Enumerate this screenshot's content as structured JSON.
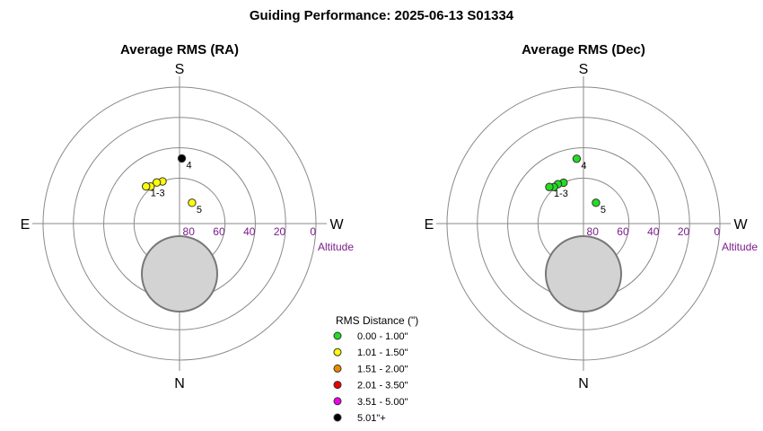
{
  "title": "Guiding Performance: 2025-06-13 S01334",
  "compass": {
    "top": "S",
    "bottom": "N",
    "left": "E",
    "right": "W"
  },
  "altitude_label": "Altitude",
  "altitude_ticks": [
    "80",
    "60",
    "40",
    "20",
    "0"
  ],
  "legend": {
    "title": "RMS Distance (\")",
    "items": [
      {
        "label": "0.00 - 1.00\"",
        "color": "#22dd22"
      },
      {
        "label": "1.01 - 1.50\"",
        "color": "#ffff00"
      },
      {
        "label": "1.51 - 2.00\"",
        "color": "#ee8800"
      },
      {
        "label": "2.01 - 3.50\"",
        "color": "#ee0000"
      },
      {
        "label": "3.51 - 5.00\"",
        "color": "#ee00ee"
      },
      {
        "label": "5.01\"+",
        "color": "#000000"
      }
    ]
  },
  "chart_data": [
    {
      "type": "scatter",
      "title": "Average RMS (RA)",
      "coordinate_system": "polar (azimuth, altitude)",
      "altitude_range": [
        0,
        90
      ],
      "points": [
        {
          "label": "4",
          "azimuth": 182,
          "altitude": 47,
          "color": "#000000"
        },
        {
          "label": "",
          "azimuth": 158,
          "altitude": 60,
          "color": "#ffff00"
        },
        {
          "label": "",
          "azimuth": 151,
          "altitude": 59,
          "color": "#ffff00"
        },
        {
          "label": "",
          "azimuth": 142,
          "altitude": 59,
          "color": "#ffff00"
        },
        {
          "label": "1-3",
          "azimuth": 138,
          "altitude": 57,
          "color": "#ffff00"
        },
        {
          "label": "5",
          "azimuth": 211,
          "altitude": 74,
          "color": "#ffff00"
        }
      ]
    },
    {
      "type": "scatter",
      "title": "Average RMS (Dec)",
      "coordinate_system": "polar (azimuth, altitude)",
      "altitude_range": [
        0,
        90
      ],
      "points": [
        {
          "label": "4",
          "azimuth": 174,
          "altitude": 47,
          "color": "#22dd22"
        },
        {
          "label": "",
          "azimuth": 154,
          "altitude": 60,
          "color": "#22dd22"
        },
        {
          "label": "",
          "azimuth": 147,
          "altitude": 59,
          "color": "#22dd22"
        },
        {
          "label": "",
          "azimuth": 141,
          "altitude": 59,
          "color": "#22dd22"
        },
        {
          "label": "1-3",
          "azimuth": 137,
          "altitude": 57,
          "color": "#22dd22"
        },
        {
          "label": "5",
          "azimuth": 211,
          "altitude": 74,
          "color": "#22dd22"
        }
      ]
    }
  ]
}
